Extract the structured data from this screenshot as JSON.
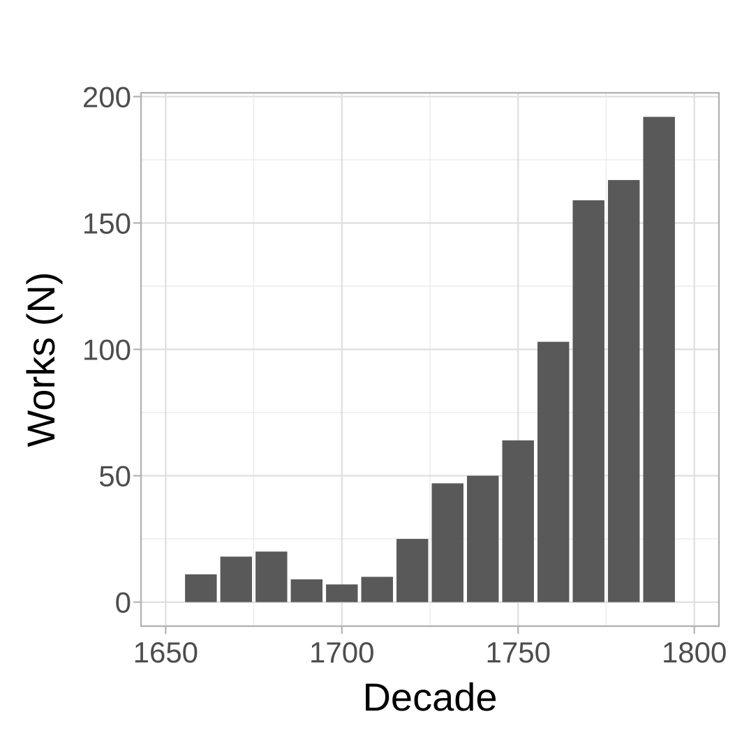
{
  "chart_data": {
    "type": "bar",
    "xlabel": "Decade",
    "ylabel": "Works (N)",
    "x": [
      1660,
      1670,
      1680,
      1690,
      1700,
      1710,
      1720,
      1730,
      1740,
      1750,
      1760,
      1770,
      1780,
      1790
    ],
    "values": [
      11,
      18,
      20,
      9,
      7,
      10,
      25,
      47,
      50,
      64,
      103,
      159,
      167,
      192
    ],
    "xlim": [
      1643,
      1807
    ],
    "ylim": [
      -9.5,
      201.5
    ],
    "x_ticks": [
      1650,
      1700,
      1750,
      1800
    ],
    "x_tick_labels": [
      "1650",
      "1700",
      "1750",
      "1800"
    ],
    "y_ticks": [
      0,
      50,
      100,
      150,
      200
    ],
    "y_tick_labels": [
      "0",
      "50",
      "100",
      "150",
      "200"
    ],
    "bar_color": "#595959",
    "grid": true,
    "legend": "none"
  }
}
